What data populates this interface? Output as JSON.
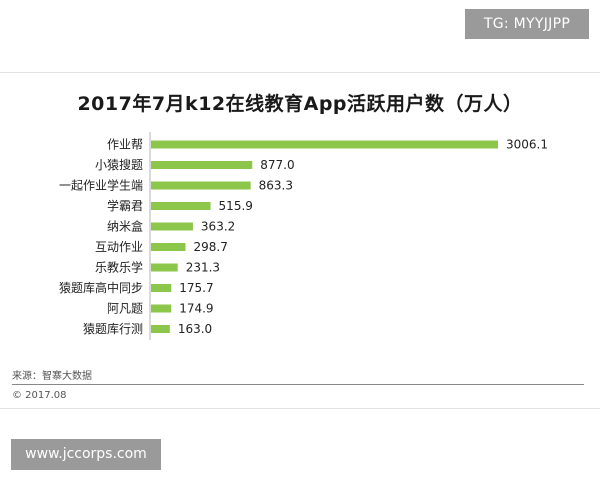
{
  "watermark": {
    "tg": "TG: MYYJJPP",
    "url": "www.jccorps.com"
  },
  "footer": {
    "source": "来源：智寨大数据",
    "copyright": "© 2017.08"
  },
  "colors": {
    "bar": "#8cc64a",
    "axis": "#b5b5b5"
  },
  "chart_data": {
    "type": "bar",
    "orientation": "horizontal",
    "title": "2017年7月k12在线教育App活跃用户数（万人）",
    "categories": [
      "作业帮",
      "小猿搜题",
      "一起作业学生端",
      "学霸君",
      "纳米盒",
      "互动作业",
      "乐教乐学",
      "猿题库高中同步",
      "阿凡题",
      "猿题库行测"
    ],
    "values": [
      3006.1,
      877.0,
      863.3,
      515.9,
      363.2,
      298.7,
      231.3,
      175.7,
      174.9,
      163.0
    ],
    "value_labels": [
      "3006.1",
      "877.0",
      "863.3",
      "515.9",
      "363.2",
      "298.7",
      "231.3",
      "175.7",
      "174.9",
      "163.0"
    ],
    "xlim": [
      0,
      3006.1
    ],
    "grid": false,
    "legend": "none"
  }
}
